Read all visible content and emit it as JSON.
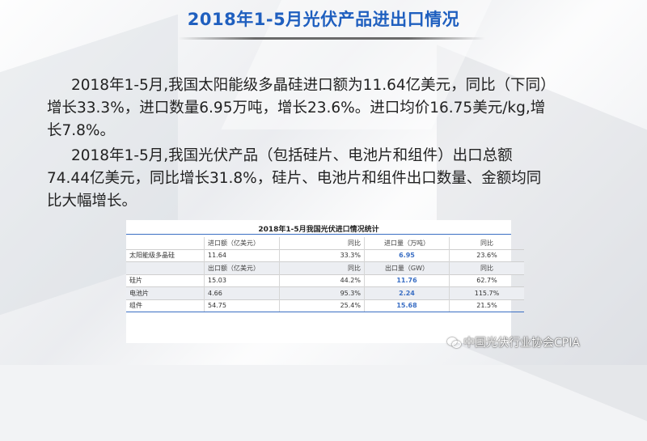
{
  "slide": {
    "title": "2018年1-5月光伏产品进出口情况"
  },
  "paragraphs": {
    "p1": {
      "line1": "2018年1-5月,我国太阳能级多晶硅进口额为11.64亿美元，同比（下同）",
      "line2": "增长33.3%，进口数量6.95万吨，增长23.6%。进口均价16.75美元/kg,增",
      "line3": "长7.8%。"
    },
    "p2": {
      "line1": "2018年1-5月,我国光伏产品（包括硅片、电池片和组件）出口总额",
      "line2": "74.44亿美元，同比增长31.8%，硅片、电池片和组件出口数量、金额均同",
      "line3": "比大幅增长。"
    }
  },
  "table": {
    "caption": "2018年1-5月我国光伏进口情况统计",
    "rows": [
      [
        "",
        "进口额（亿美元）",
        "同比",
        "进口量（万吨）",
        "同比"
      ],
      [
        "太阳能级多晶硅",
        "11.64",
        "33.3%",
        "6.95",
        "23.6%"
      ],
      [
        "",
        "出口额（亿美元）",
        "同比",
        "出口量（GW）",
        "同比"
      ],
      [
        "硅片",
        "15.03",
        "44.2%",
        "11.76",
        "62.7%"
      ],
      [
        "电池片",
        "4.66",
        "95.3%",
        "2.24",
        "115.7%"
      ],
      [
        "组件",
        "54.75",
        "25.4%",
        "15.68",
        "21.5%"
      ]
    ]
  },
  "watermark": {
    "icon": "wechat-icon",
    "text": "中国光伏行业协会CPIA"
  }
}
